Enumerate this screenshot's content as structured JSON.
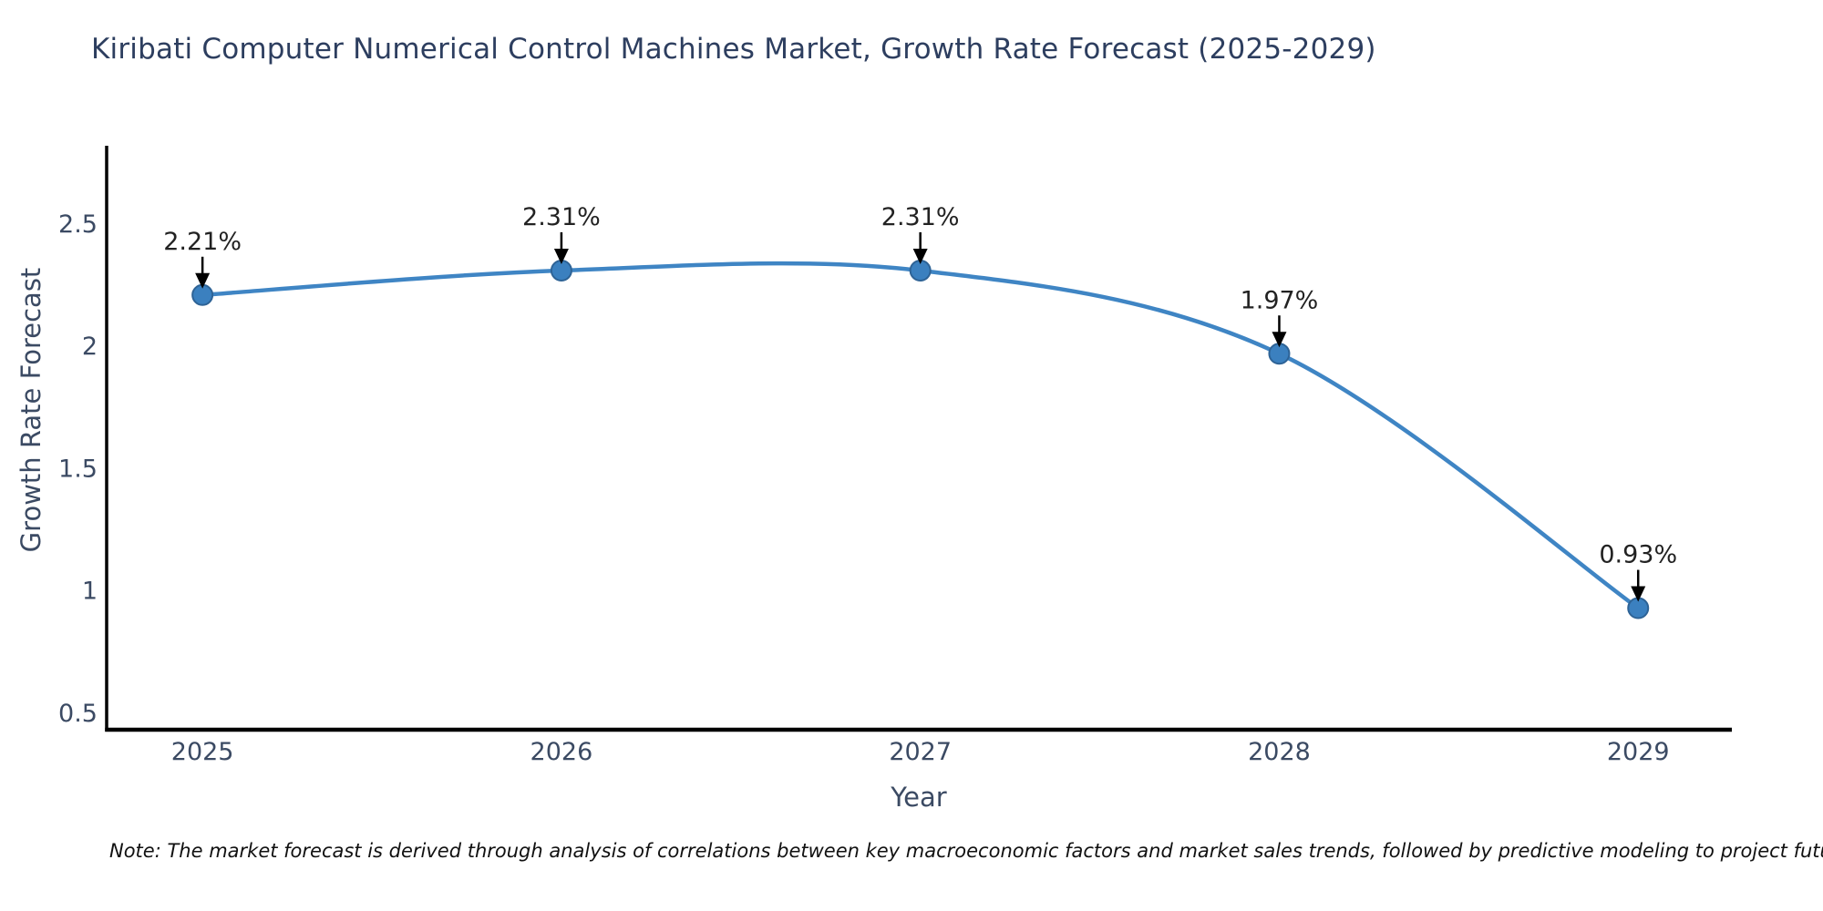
{
  "page": {
    "note": "Note: The market forecast is derived through analysis of correlations between key macroeconomic factors and market sales trends, followed by predictive modeling to project future sales"
  },
  "chart_data": {
    "type": "line",
    "title": "Kiribati Computer Numerical Control Machines Market, Growth Rate Forecast (2025-2029)",
    "xlabel": "Year",
    "ylabel": "Growth Rate Forecast",
    "x": [
      2025,
      2026,
      2027,
      2028,
      2029
    ],
    "series": [
      {
        "name": "Growth Rate Forecast",
        "values": [
          2.21,
          2.31,
          2.31,
          1.97,
          0.93
        ]
      }
    ],
    "point_labels": [
      "2.21%",
      "2.31%",
      "2.31%",
      "1.97%",
      "0.93%"
    ],
    "xticks": [
      2025,
      2026,
      2027,
      2028,
      2029
    ],
    "xtick_labels": [
      "2025",
      "2026",
      "2027",
      "2028",
      "2029"
    ],
    "yticks": [
      0.5,
      1,
      1.5,
      2,
      2.5
    ],
    "ytick_labels": [
      "0.5",
      "1",
      "1.5",
      "2",
      "2.5"
    ],
    "xlim": [
      2024.733,
      2029.261
    ],
    "ylim": [
      0.433,
      2.82
    ],
    "grid": false,
    "legend": "none",
    "colors": {
      "line": "#3f85c4",
      "marker_fill": "#3b80bf",
      "marker_edge": "#2e6396",
      "axis": "#000000",
      "tick_text": "#3b4a63",
      "title_text": "#2d3e5f",
      "annotation_text": "#222222"
    }
  }
}
